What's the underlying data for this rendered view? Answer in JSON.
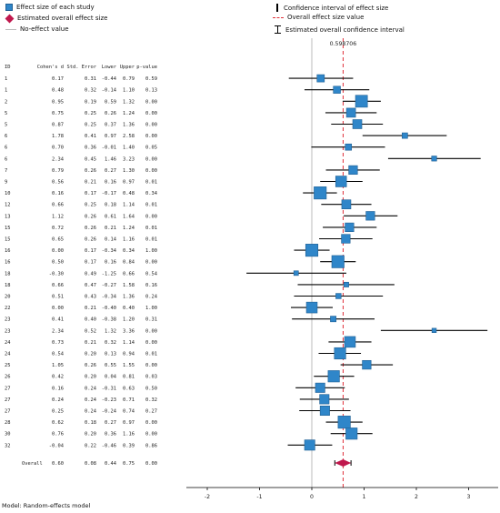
{
  "legend": {
    "effect_size": "Effect size of each study",
    "overall_effect": "Estimated overall effect size",
    "no_effect": "No-effect value",
    "ci_effect": "Confidence interval of effect size",
    "overall_value": "Overall effect size value",
    "overall_ci": "Estimated overall confidence interval"
  },
  "footer": "Model: Random-effects model",
  "colors": {
    "box_fill": "#2f86c9",
    "box_stroke": "#1f5f93",
    "overall": "#c0184d",
    "ref_dashed": "#e0303a",
    "no_effect": "#bbbbbb"
  },
  "chart_data": {
    "type": "forest",
    "columns": [
      "ID",
      "Cohen's d",
      "Std. Error",
      "Lower",
      "Upper",
      "p-value"
    ],
    "overall_value_label": "0.598706",
    "overall_value": 0.598706,
    "x_ticks": [
      -2,
      -1,
      0,
      1,
      2,
      3
    ],
    "xlim": [
      -2.6,
      3.6
    ],
    "studies": [
      {
        "id": "1",
        "d": 0.17,
        "se": 0.31,
        "lower": -0.44,
        "upper": 0.79,
        "p": 0.59
      },
      {
        "id": "1",
        "d": 0.48,
        "se": 0.32,
        "lower": -0.14,
        "upper": 1.1,
        "p": 0.13
      },
      {
        "id": "2",
        "d": 0.95,
        "se": 0.19,
        "lower": 0.59,
        "upper": 1.32,
        "p": 0.0
      },
      {
        "id": "5",
        "d": 0.75,
        "se": 0.25,
        "lower": 0.26,
        "upper": 1.24,
        "p": 0.0
      },
      {
        "id": "5",
        "d": 0.87,
        "se": 0.25,
        "lower": 0.37,
        "upper": 1.36,
        "p": 0.0
      },
      {
        "id": "6",
        "d": 1.78,
        "se": 0.41,
        "lower": 0.97,
        "upper": 2.58,
        "p": 0.0
      },
      {
        "id": "6",
        "d": 0.7,
        "se": 0.36,
        "lower": -0.01,
        "upper": 1.4,
        "p": 0.05
      },
      {
        "id": "6",
        "d": 2.34,
        "se": 0.45,
        "lower": 1.46,
        "upper": 3.23,
        "p": 0.0
      },
      {
        "id": "7",
        "d": 0.79,
        "se": 0.26,
        "lower": 0.27,
        "upper": 1.3,
        "p": 0.0
      },
      {
        "id": "9",
        "d": 0.56,
        "se": 0.21,
        "lower": 0.16,
        "upper": 0.97,
        "p": 0.01
      },
      {
        "id": "10",
        "d": 0.16,
        "se": 0.17,
        "lower": -0.17,
        "upper": 0.48,
        "p": 0.34
      },
      {
        "id": "12",
        "d": 0.66,
        "se": 0.25,
        "lower": 0.18,
        "upper": 1.14,
        "p": 0.01
      },
      {
        "id": "13",
        "d": 1.12,
        "se": 0.26,
        "lower": 0.61,
        "upper": 1.64,
        "p": 0.0
      },
      {
        "id": "15",
        "d": 0.72,
        "se": 0.26,
        "lower": 0.21,
        "upper": 1.24,
        "p": 0.01
      },
      {
        "id": "15",
        "d": 0.65,
        "se": 0.26,
        "lower": 0.14,
        "upper": 1.16,
        "p": 0.01
      },
      {
        "id": "16",
        "d": 0.0,
        "se": 0.17,
        "lower": -0.34,
        "upper": 0.34,
        "p": 1.0
      },
      {
        "id": "16",
        "d": 0.5,
        "se": 0.17,
        "lower": 0.16,
        "upper": 0.84,
        "p": 0.0
      },
      {
        "id": "18",
        "d": -0.3,
        "se": 0.49,
        "lower": -1.25,
        "upper": 0.66,
        "p": 0.54
      },
      {
        "id": "18",
        "d": 0.66,
        "se": 0.47,
        "lower": -0.27,
        "upper": 1.58,
        "p": 0.16
      },
      {
        "id": "20",
        "d": 0.51,
        "se": 0.43,
        "lower": -0.34,
        "upper": 1.36,
        "p": 0.24
      },
      {
        "id": "22",
        "d": 0.0,
        "se": 0.21,
        "lower": -0.4,
        "upper": 0.4,
        "p": 1.0
      },
      {
        "id": "23",
        "d": 0.41,
        "se": 0.4,
        "lower": -0.38,
        "upper": 1.2,
        "p": 0.31
      },
      {
        "id": "23",
        "d": 2.34,
        "se": 0.52,
        "lower": 1.32,
        "upper": 3.36,
        "p": 0.0
      },
      {
        "id": "24",
        "d": 0.73,
        "se": 0.21,
        "lower": 0.32,
        "upper": 1.14,
        "p": 0.0
      },
      {
        "id": "24",
        "d": 0.54,
        "se": 0.2,
        "lower": 0.13,
        "upper": 0.94,
        "p": 0.01
      },
      {
        "id": "25",
        "d": 1.05,
        "se": 0.26,
        "lower": 0.55,
        "upper": 1.55,
        "p": 0.0
      },
      {
        "id": "26",
        "d": 0.42,
        "se": 0.2,
        "lower": 0.04,
        "upper": 0.81,
        "p": 0.03
      },
      {
        "id": "27",
        "d": 0.16,
        "se": 0.24,
        "lower": -0.31,
        "upper": 0.63,
        "p": 0.5
      },
      {
        "id": "27",
        "d": 0.24,
        "se": 0.24,
        "lower": -0.23,
        "upper": 0.71,
        "p": 0.32
      },
      {
        "id": "27",
        "d": 0.25,
        "se": 0.24,
        "lower": -0.24,
        "upper": 0.74,
        "p": 0.27
      },
      {
        "id": "28",
        "d": 0.62,
        "se": 0.18,
        "lower": 0.27,
        "upper": 0.97,
        "p": 0.0
      },
      {
        "id": "30",
        "d": 0.76,
        "se": 0.2,
        "lower": 0.36,
        "upper": 1.16,
        "p": 0.0
      },
      {
        "id": "32",
        "d": -0.04,
        "se": 0.22,
        "lower": -0.46,
        "upper": 0.39,
        "p": 0.86
      }
    ],
    "overall": {
      "label": "Overall",
      "d": 0.6,
      "se": 0.08,
      "lower": 0.44,
      "upper": 0.75,
      "p": 0.0
    }
  }
}
